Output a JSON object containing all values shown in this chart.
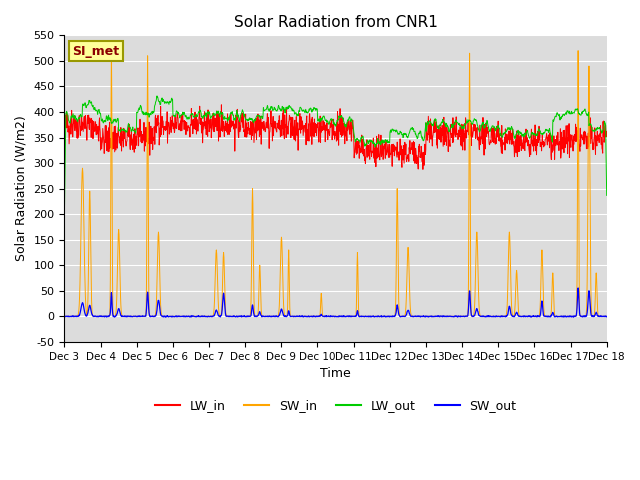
{
  "title": "Solar Radiation from CNR1",
  "xlabel": "Time",
  "ylabel": "Solar Radiation (W/m2)",
  "ylim": [
    -50,
    550
  ],
  "xtick_labels": [
    "Dec 3",
    "Dec 4",
    "Dec 5",
    "Dec 6",
    "Dec 7",
    "Dec 8",
    "Dec 9",
    "Dec 10",
    "Dec 11",
    "Dec 12",
    "Dec 13",
    "Dec 14",
    "Dec 15",
    "Dec 16",
    "Dec 17",
    "Dec 18"
  ],
  "ytick_values": [
    -50,
    0,
    50,
    100,
    150,
    200,
    250,
    300,
    350,
    400,
    450,
    500,
    550
  ],
  "colors": {
    "LW_in": "#FF0000",
    "SW_in": "#FFA500",
    "LW_out": "#00CC00",
    "SW_out": "#0000FF"
  },
  "bg_color": "#DCDCDC",
  "annotation_box": {
    "text": "SI_met",
    "facecolor": "#FFFF99",
    "edgecolor": "#999900",
    "text_color": "#8B0000"
  },
  "n_points": 1500,
  "seed": 42
}
